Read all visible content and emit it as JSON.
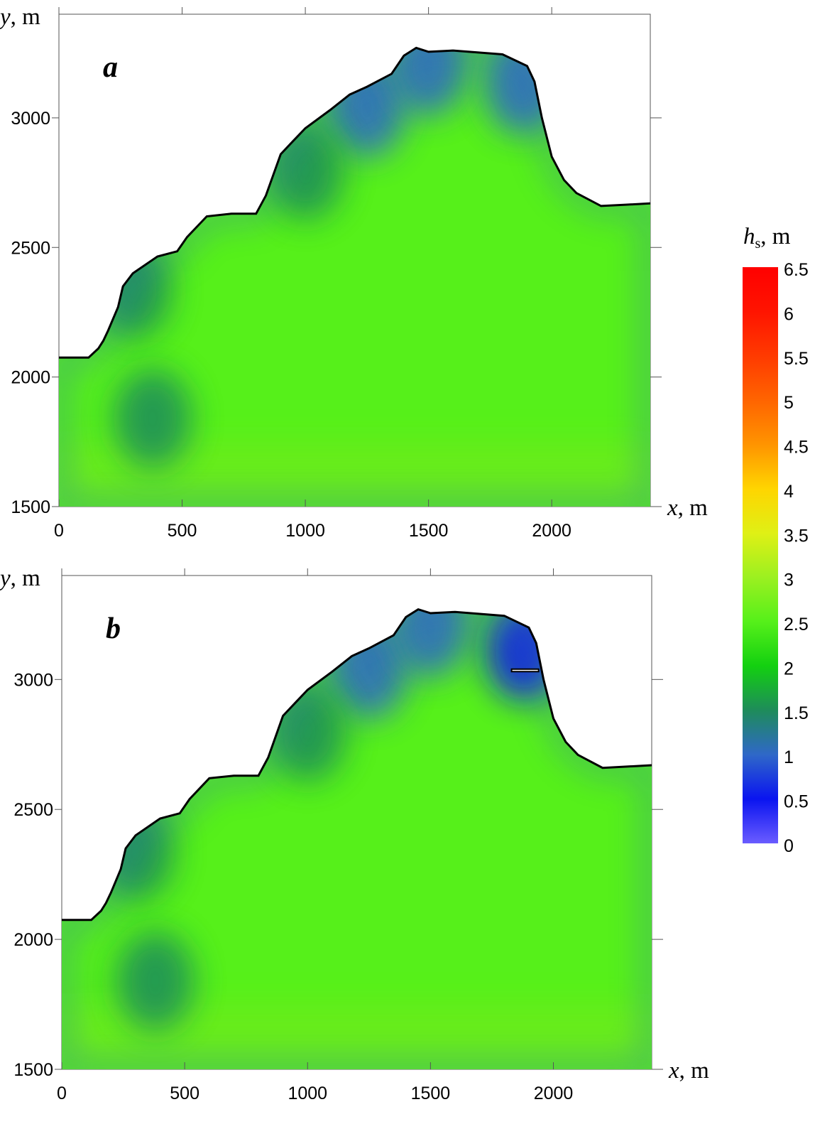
{
  "chart_data": [
    {
      "type": "heatmap",
      "panel_label": "a",
      "xlabel_var": "x",
      "xlabel_unit": ", m",
      "ylabel_var": "y",
      "ylabel_unit": ", m",
      "xlim": [
        0,
        2400
      ],
      "ylim": [
        1500,
        3400
      ],
      "xticks": [
        0,
        500,
        1000,
        1500,
        2000
      ],
      "yticks": [
        1500,
        2000,
        2500,
        3000
      ],
      "coastline": [
        [
          0,
          2075
        ],
        [
          120,
          2075
        ],
        [
          160,
          2110
        ],
        [
          180,
          2140
        ],
        [
          200,
          2180
        ],
        [
          240,
          2270
        ],
        [
          260,
          2350
        ],
        [
          300,
          2400
        ],
        [
          400,
          2465
        ],
        [
          480,
          2485
        ],
        [
          520,
          2540
        ],
        [
          600,
          2620
        ],
        [
          700,
          2630
        ],
        [
          800,
          2630
        ],
        [
          840,
          2700
        ],
        [
          900,
          2860
        ],
        [
          950,
          2910
        ],
        [
          1000,
          2960
        ],
        [
          1100,
          3030
        ],
        [
          1180,
          3090
        ],
        [
          1250,
          3120
        ],
        [
          1350,
          3170
        ],
        [
          1400,
          3240
        ],
        [
          1450,
          3270
        ],
        [
          1500,
          3255
        ],
        [
          1600,
          3260
        ],
        [
          1800,
          3245
        ],
        [
          1900,
          3200
        ],
        [
          1930,
          3140
        ],
        [
          1960,
          3000
        ],
        [
          2000,
          2850
        ],
        [
          2050,
          2760
        ],
        [
          2100,
          2710
        ],
        [
          2200,
          2660
        ],
        [
          2300,
          2665
        ],
        [
          2400,
          2670
        ]
      ],
      "low_zones": [
        {
          "x": 1250,
          "y": 3040,
          "hs": 0.8
        },
        {
          "x": 1500,
          "y": 3200,
          "hs": 1.1
        },
        {
          "x": 1880,
          "y": 3130,
          "hs": 0.9
        },
        {
          "x": 300,
          "y": 2340,
          "hs": 1.3
        },
        {
          "x": 380,
          "y": 1840,
          "hs": 1.4
        },
        {
          "x": 1000,
          "y": 2800,
          "hs": 1.5
        }
      ],
      "background_hs": 2.7
    },
    {
      "type": "heatmap",
      "panel_label": "b",
      "xlabel_var": "x",
      "xlabel_unit": ", m",
      "ylabel_var": "y",
      "ylabel_unit": ", m",
      "xlim": [
        0,
        2400
      ],
      "ylim": [
        1500,
        3400
      ],
      "xticks": [
        0,
        500,
        1000,
        1500,
        2000
      ],
      "yticks": [
        1500,
        2000,
        2500,
        3000
      ],
      "coastline": [
        [
          0,
          2075
        ],
        [
          120,
          2075
        ],
        [
          160,
          2110
        ],
        [
          180,
          2140
        ],
        [
          200,
          2180
        ],
        [
          240,
          2270
        ],
        [
          260,
          2350
        ],
        [
          300,
          2400
        ],
        [
          400,
          2465
        ],
        [
          480,
          2485
        ],
        [
          520,
          2540
        ],
        [
          600,
          2620
        ],
        [
          700,
          2630
        ],
        [
          800,
          2630
        ],
        [
          840,
          2700
        ],
        [
          900,
          2860
        ],
        [
          950,
          2910
        ],
        [
          1000,
          2960
        ],
        [
          1100,
          3030
        ],
        [
          1180,
          3090
        ],
        [
          1250,
          3120
        ],
        [
          1350,
          3170
        ],
        [
          1400,
          3240
        ],
        [
          1450,
          3270
        ],
        [
          1500,
          3255
        ],
        [
          1600,
          3260
        ],
        [
          1800,
          3245
        ],
        [
          1900,
          3200
        ],
        [
          1930,
          3140
        ],
        [
          1960,
          3000
        ],
        [
          2000,
          2850
        ],
        [
          2050,
          2760
        ],
        [
          2100,
          2710
        ],
        [
          2200,
          2660
        ],
        [
          2300,
          2665
        ],
        [
          2400,
          2670
        ]
      ],
      "pier": [
        [
          1830,
          3040
        ],
        [
          1940,
          3040
        ],
        [
          1940,
          3030
        ],
        [
          1830,
          3030
        ]
      ],
      "low_zones": [
        {
          "x": 1250,
          "y": 3040,
          "hs": 0.8
        },
        {
          "x": 1500,
          "y": 3200,
          "hs": 1.1
        },
        {
          "x": 1880,
          "y": 3110,
          "hs": 0.6
        },
        {
          "x": 300,
          "y": 2340,
          "hs": 1.3
        },
        {
          "x": 380,
          "y": 1840,
          "hs": 1.4
        },
        {
          "x": 1000,
          "y": 2800,
          "hs": 1.5
        }
      ],
      "background_hs": 2.7
    }
  ],
  "colorbar": {
    "title_var": "h",
    "title_sub": "s",
    "title_unit": ", m",
    "min": 0,
    "max": 6.5,
    "tick_labels": [
      "6.5",
      "6",
      "5.5",
      "5",
      "4.5",
      "4",
      "3.5",
      "3",
      "2.5",
      "2",
      "1.5",
      "1",
      "0.5",
      "0"
    ],
    "colors": [
      "#6a5cff",
      "#0a14f0",
      "#2f68c8",
      "#1e8c5a",
      "#13d010",
      "#56f01a",
      "#9cf020",
      "#dff015",
      "#ffd500",
      "#ff9400",
      "#ff6400",
      "#ff3a00",
      "#ff1400",
      "#ff0000"
    ]
  }
}
